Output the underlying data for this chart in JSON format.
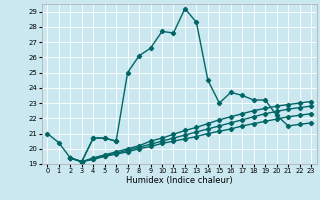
{
  "xlabel": "Humidex (Indice chaleur)",
  "ylabel": "",
  "bg_color": "#cbe8f0",
  "grid_color": "#ffffff",
  "line_color": "#006666",
  "xlim": [
    -0.5,
    23.5
  ],
  "ylim": [
    19,
    29.5
  ],
  "yticks": [
    19,
    20,
    21,
    22,
    23,
    24,
    25,
    26,
    27,
    28,
    29
  ],
  "xticks": [
    0,
    1,
    2,
    3,
    4,
    5,
    6,
    7,
    8,
    9,
    10,
    11,
    12,
    13,
    14,
    15,
    16,
    17,
    18,
    19,
    20,
    21,
    22,
    23
  ],
  "series": [
    {
      "x": [
        0,
        1,
        2,
        3,
        4,
        5,
        6
      ],
      "y": [
        21.0,
        20.4,
        19.4,
        19.15,
        20.7,
        20.7,
        20.5
      ]
    },
    {
      "x": [
        2,
        3,
        4,
        5,
        6,
        7,
        8,
        9,
        10,
        11,
        12,
        13,
        14,
        15,
        16,
        17,
        18,
        19,
        20,
        21,
        22,
        23
      ],
      "y": [
        19.4,
        19.15,
        20.7,
        20.7,
        20.5,
        25.0,
        26.1,
        26.6,
        27.7,
        27.6,
        29.2,
        28.3,
        24.5,
        23.0,
        23.7,
        23.5,
        23.2,
        23.2,
        22.2,
        21.5,
        21.6,
        21.7
      ]
    },
    {
      "x": [
        2,
        3,
        4,
        5,
        6,
        7,
        8,
        9,
        10,
        11,
        12,
        13,
        14,
        15,
        16,
        17,
        18,
        19,
        20,
        21,
        22,
        23
      ],
      "y": [
        19.4,
        19.15,
        19.4,
        19.6,
        19.8,
        20.0,
        20.2,
        20.5,
        20.7,
        20.95,
        21.2,
        21.4,
        21.65,
        21.9,
        22.1,
        22.3,
        22.5,
        22.65,
        22.8,
        22.9,
        23.0,
        23.1
      ]
    },
    {
      "x": [
        2,
        3,
        4,
        5,
        6,
        7,
        8,
        9,
        10,
        11,
        12,
        13,
        14,
        15,
        16,
        17,
        18,
        19,
        20,
        21,
        22,
        23
      ],
      "y": [
        19.4,
        19.15,
        19.35,
        19.55,
        19.7,
        19.9,
        20.1,
        20.3,
        20.5,
        20.7,
        20.9,
        21.1,
        21.3,
        21.5,
        21.7,
        21.9,
        22.1,
        22.3,
        22.45,
        22.6,
        22.7,
        22.8
      ]
    },
    {
      "x": [
        2,
        3,
        4,
        5,
        6,
        7,
        8,
        9,
        10,
        11,
        12,
        13,
        14,
        15,
        16,
        17,
        18,
        19,
        20,
        21,
        22,
        23
      ],
      "y": [
        19.4,
        19.15,
        19.3,
        19.5,
        19.65,
        19.8,
        20.0,
        20.15,
        20.35,
        20.5,
        20.65,
        20.8,
        21.0,
        21.15,
        21.3,
        21.5,
        21.65,
        21.8,
        21.95,
        22.1,
        22.2,
        22.3
      ]
    }
  ],
  "marker": "D",
  "marker_size": 2.2,
  "line_width": 1.0
}
